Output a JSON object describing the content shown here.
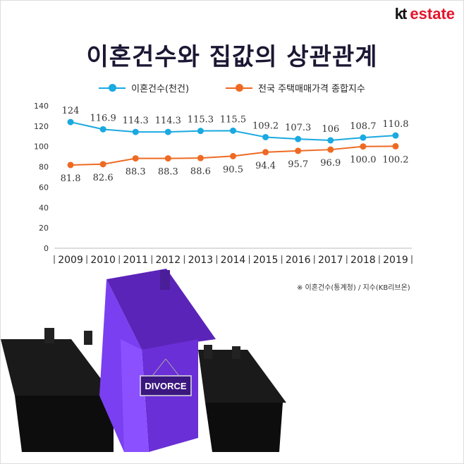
{
  "logo": {
    "kt": "kt",
    "estate": "estate"
  },
  "chart_data": {
    "type": "line",
    "title": "이혼건수와 집값의 상관관계",
    "categories": [
      "2009",
      "2010",
      "2011",
      "2012",
      "2013",
      "2014",
      "2015",
      "2016",
      "2017",
      "2018",
      "2019"
    ],
    "ylim": [
      0,
      140
    ],
    "yticks": [
      0,
      20,
      40,
      60,
      80,
      100,
      120,
      140
    ],
    "grid": false,
    "legend_placement": "top-center",
    "series": [
      {
        "name": "이혼건수(천건)",
        "color": "#1aa9e1",
        "values": [
          124,
          116.9,
          114.3,
          114.3,
          115.3,
          115.5,
          109.2,
          107.3,
          106,
          108.7,
          110.8
        ],
        "labels": [
          "124",
          "116.9",
          "114.3",
          "114.3",
          "115.3",
          "115.5",
          "109.2",
          "107.3",
          "106",
          "108.7",
          "110.8"
        ]
      },
      {
        "name": "전국 주택매매가격 종합지수",
        "color": "#ee6a23",
        "values": [
          81.8,
          82.6,
          88.3,
          88.3,
          88.6,
          90.5,
          94.4,
          95.7,
          96.9,
          100.0,
          100.2
        ],
        "labels": [
          "81.8",
          "82.6",
          "88.3",
          "88.3",
          "88.6",
          "90.5",
          "94.4",
          "95.7",
          "96.9",
          "100.0",
          "100.2"
        ]
      }
    ],
    "source": "※ 이혼건수(통계청) / 지수(KB리브온)"
  },
  "illustration": {
    "sign": "DIVORCE",
    "house_color": "#6a2fd6"
  }
}
